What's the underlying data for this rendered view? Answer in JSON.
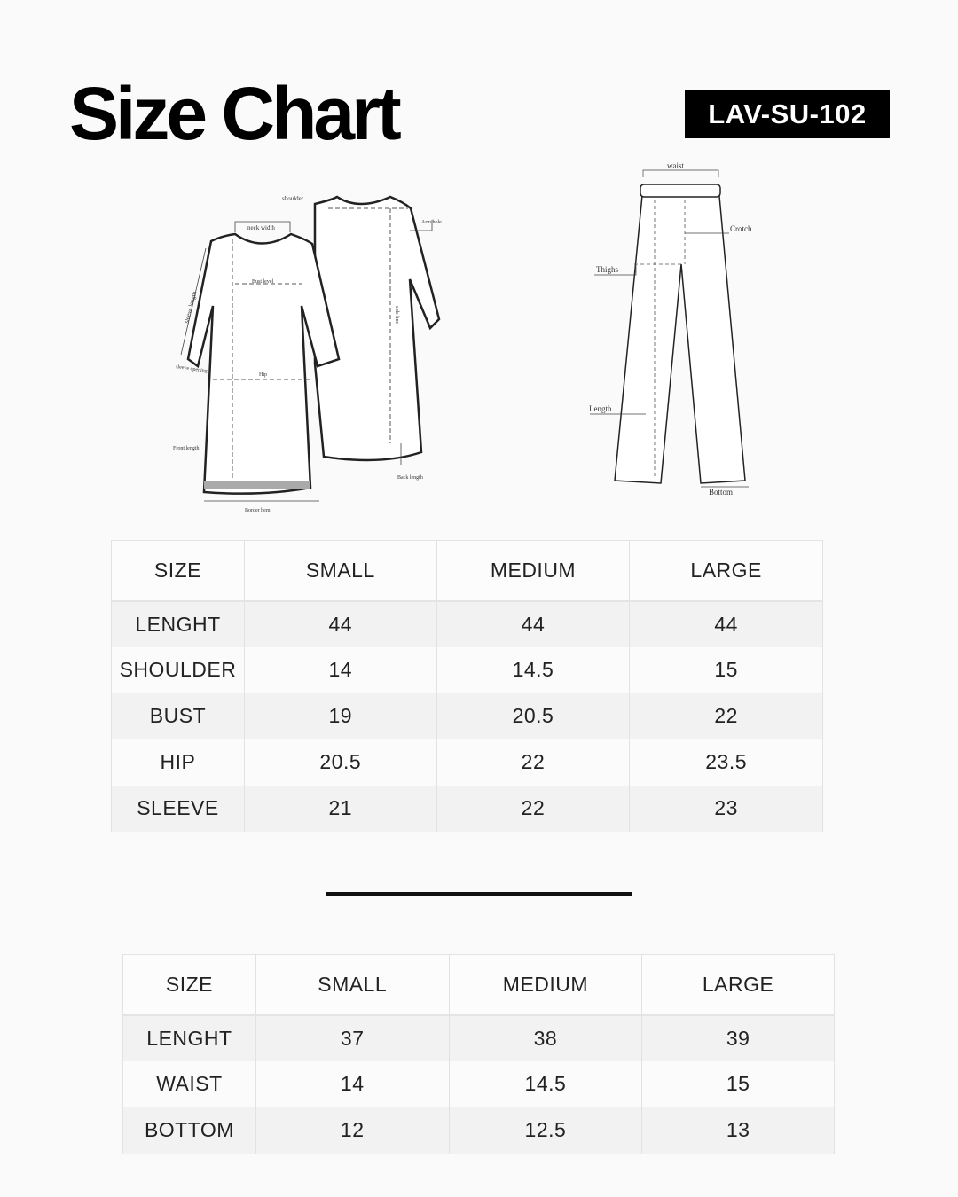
{
  "header": {
    "title": "Size Chart",
    "code": "LAV-SU-102"
  },
  "kurta_labels": {
    "shoulder": "shoulder",
    "neck_width": "neck width",
    "arm_hole": "Arm hole",
    "sleeve_length": "sleeve length",
    "bust_level": "Bust level",
    "side_line": "side line",
    "hip": "Hip",
    "sleeve_opening": "sleeve opening",
    "front_length": "Front length",
    "back_length": "Back length",
    "border_hem": "Border hem"
  },
  "pant_labels": {
    "waist": "waist",
    "crotch": "Crotch",
    "thighs": "Thighs",
    "length": "Length",
    "bottom": "Bottom"
  },
  "top_table": {
    "columns": [
      "SIZE",
      "SMALL",
      "MEDIUM",
      "LARGE"
    ],
    "rows": [
      [
        "LENGHT",
        "44",
        "44",
        "44"
      ],
      [
        "SHOULDER",
        "14",
        "14.5",
        "15"
      ],
      [
        "BUST",
        "19",
        "20.5",
        "22"
      ],
      [
        "HIP",
        "20.5",
        "22",
        "23.5"
      ],
      [
        "SLEEVE",
        "21",
        "22",
        "23"
      ]
    ]
  },
  "bottom_table": {
    "columns": [
      "SIZE",
      "SMALL",
      "MEDIUM",
      "LARGE"
    ],
    "rows": [
      [
        "LENGHT",
        "37",
        "38",
        "39"
      ],
      [
        "WAIST",
        "14",
        "14.5",
        "15"
      ],
      [
        "BOTTOM",
        "12",
        "12.5",
        "13"
      ]
    ]
  }
}
